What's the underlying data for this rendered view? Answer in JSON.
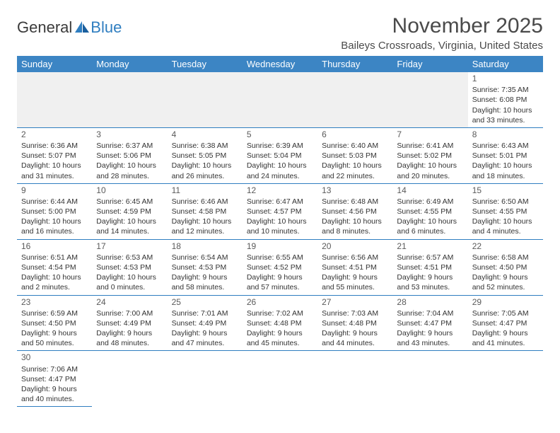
{
  "logo": {
    "text1": "General",
    "text2": "Blue"
  },
  "title": "November 2025",
  "location": "Baileys Crossroads, Virginia, United States",
  "colors": {
    "header_bg": "#3c85c4",
    "header_text": "#ffffff",
    "rule": "#2f7ec0",
    "text": "#333333",
    "logo_blue": "#2f7ec0"
  },
  "day_headers": [
    "Sunday",
    "Monday",
    "Tuesday",
    "Wednesday",
    "Thursday",
    "Friday",
    "Saturday"
  ],
  "weeks": [
    [
      null,
      null,
      null,
      null,
      null,
      null,
      {
        "n": "1",
        "sr": "7:35 AM",
        "ss": "6:08 PM",
        "dl": "10 hours and 33 minutes."
      }
    ],
    [
      {
        "n": "2",
        "sr": "6:36 AM",
        "ss": "5:07 PM",
        "dl": "10 hours and 31 minutes."
      },
      {
        "n": "3",
        "sr": "6:37 AM",
        "ss": "5:06 PM",
        "dl": "10 hours and 28 minutes."
      },
      {
        "n": "4",
        "sr": "6:38 AM",
        "ss": "5:05 PM",
        "dl": "10 hours and 26 minutes."
      },
      {
        "n": "5",
        "sr": "6:39 AM",
        "ss": "5:04 PM",
        "dl": "10 hours and 24 minutes."
      },
      {
        "n": "6",
        "sr": "6:40 AM",
        "ss": "5:03 PM",
        "dl": "10 hours and 22 minutes."
      },
      {
        "n": "7",
        "sr": "6:41 AM",
        "ss": "5:02 PM",
        "dl": "10 hours and 20 minutes."
      },
      {
        "n": "8",
        "sr": "6:43 AM",
        "ss": "5:01 PM",
        "dl": "10 hours and 18 minutes."
      }
    ],
    [
      {
        "n": "9",
        "sr": "6:44 AM",
        "ss": "5:00 PM",
        "dl": "10 hours and 16 minutes."
      },
      {
        "n": "10",
        "sr": "6:45 AM",
        "ss": "4:59 PM",
        "dl": "10 hours and 14 minutes."
      },
      {
        "n": "11",
        "sr": "6:46 AM",
        "ss": "4:58 PM",
        "dl": "10 hours and 12 minutes."
      },
      {
        "n": "12",
        "sr": "6:47 AM",
        "ss": "4:57 PM",
        "dl": "10 hours and 10 minutes."
      },
      {
        "n": "13",
        "sr": "6:48 AM",
        "ss": "4:56 PM",
        "dl": "10 hours and 8 minutes."
      },
      {
        "n": "14",
        "sr": "6:49 AM",
        "ss": "4:55 PM",
        "dl": "10 hours and 6 minutes."
      },
      {
        "n": "15",
        "sr": "6:50 AM",
        "ss": "4:55 PM",
        "dl": "10 hours and 4 minutes."
      }
    ],
    [
      {
        "n": "16",
        "sr": "6:51 AM",
        "ss": "4:54 PM",
        "dl": "10 hours and 2 minutes."
      },
      {
        "n": "17",
        "sr": "6:53 AM",
        "ss": "4:53 PM",
        "dl": "10 hours and 0 minutes."
      },
      {
        "n": "18",
        "sr": "6:54 AM",
        "ss": "4:53 PM",
        "dl": "9 hours and 58 minutes."
      },
      {
        "n": "19",
        "sr": "6:55 AM",
        "ss": "4:52 PM",
        "dl": "9 hours and 57 minutes."
      },
      {
        "n": "20",
        "sr": "6:56 AM",
        "ss": "4:51 PM",
        "dl": "9 hours and 55 minutes."
      },
      {
        "n": "21",
        "sr": "6:57 AM",
        "ss": "4:51 PM",
        "dl": "9 hours and 53 minutes."
      },
      {
        "n": "22",
        "sr": "6:58 AM",
        "ss": "4:50 PM",
        "dl": "9 hours and 52 minutes."
      }
    ],
    [
      {
        "n": "23",
        "sr": "6:59 AM",
        "ss": "4:50 PM",
        "dl": "9 hours and 50 minutes."
      },
      {
        "n": "24",
        "sr": "7:00 AM",
        "ss": "4:49 PM",
        "dl": "9 hours and 48 minutes."
      },
      {
        "n": "25",
        "sr": "7:01 AM",
        "ss": "4:49 PM",
        "dl": "9 hours and 47 minutes."
      },
      {
        "n": "26",
        "sr": "7:02 AM",
        "ss": "4:48 PM",
        "dl": "9 hours and 45 minutes."
      },
      {
        "n": "27",
        "sr": "7:03 AM",
        "ss": "4:48 PM",
        "dl": "9 hours and 44 minutes."
      },
      {
        "n": "28",
        "sr": "7:04 AM",
        "ss": "4:47 PM",
        "dl": "9 hours and 43 minutes."
      },
      {
        "n": "29",
        "sr": "7:05 AM",
        "ss": "4:47 PM",
        "dl": "9 hours and 41 minutes."
      }
    ],
    [
      {
        "n": "30",
        "sr": "7:06 AM",
        "ss": "4:47 PM",
        "dl": "9 hours and 40 minutes."
      },
      null,
      null,
      null,
      null,
      null,
      null
    ]
  ],
  "labels": {
    "sunrise": "Sunrise:",
    "sunset": "Sunset:",
    "daylight": "Daylight:"
  }
}
